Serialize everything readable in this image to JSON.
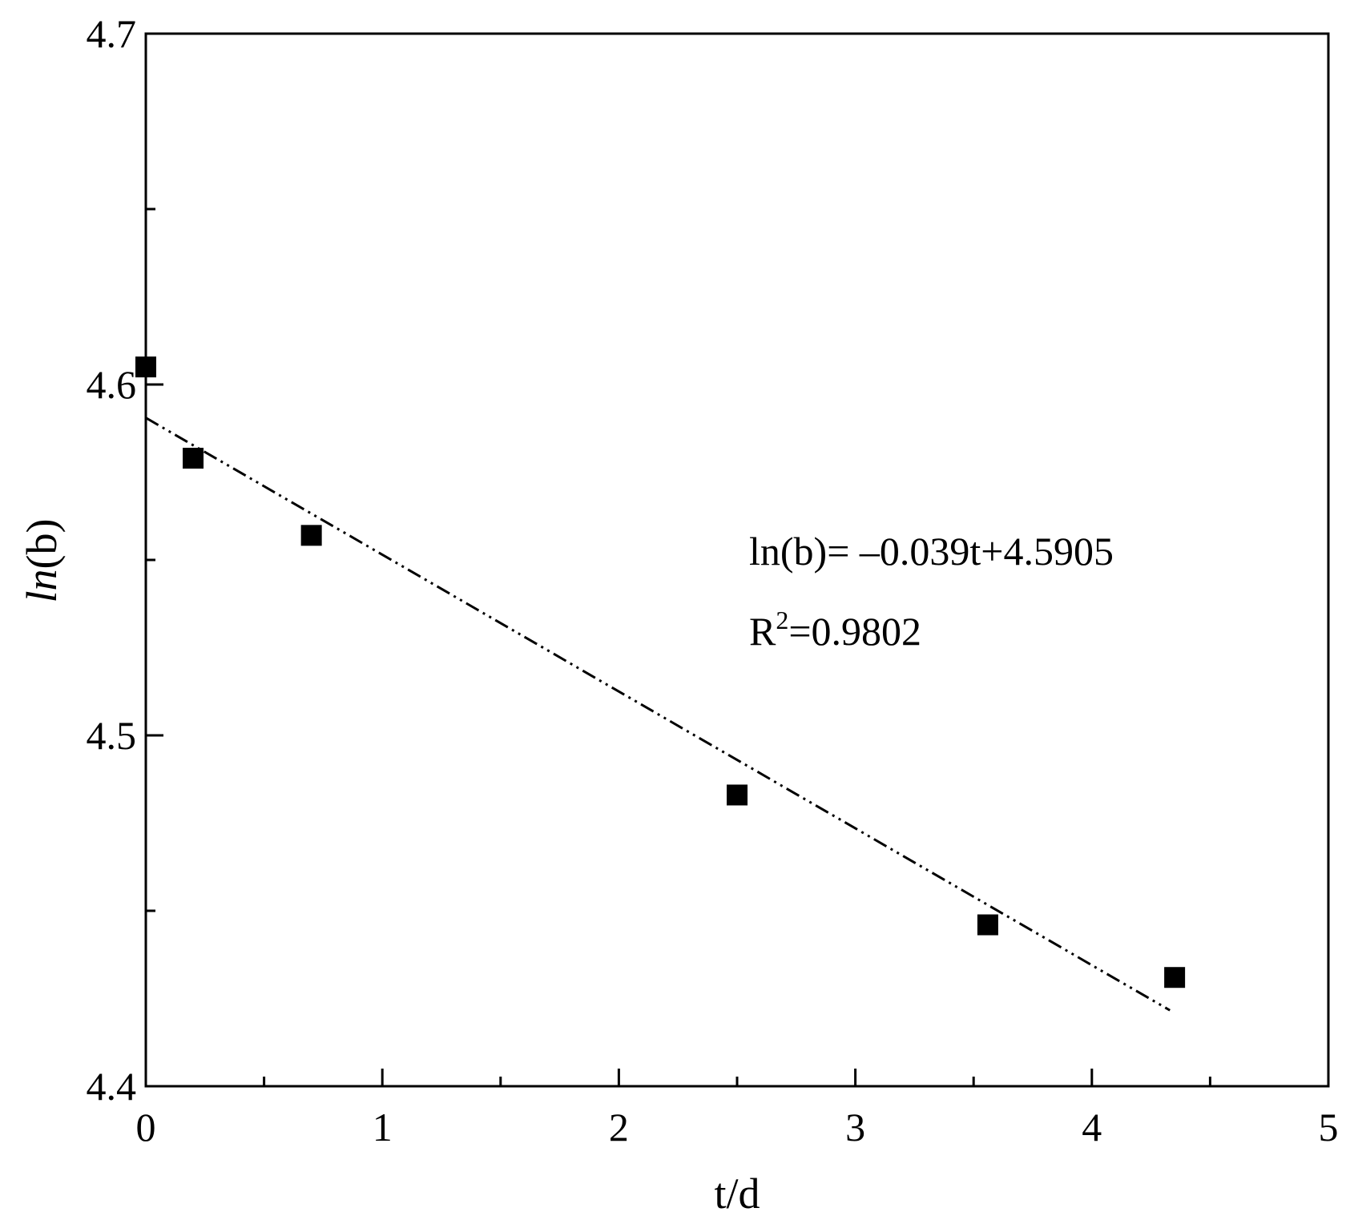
{
  "chart_data": {
    "type": "scatter",
    "title": "",
    "xlabel": "t/d",
    "ylabel": {
      "italic": "ln",
      "rest": "(b)"
    },
    "xlim": [
      0,
      5
    ],
    "ylim": [
      4.4,
      4.7
    ],
    "xticks": [
      0,
      1,
      2,
      3,
      4,
      5
    ],
    "xtick_labels": [
      "0",
      "1",
      "2",
      "3",
      "4",
      "5"
    ],
    "yticks": [
      4.4,
      4.5,
      4.6,
      4.7
    ],
    "ytick_labels": [
      "4.4",
      "4.5",
      "4.6",
      "4.7"
    ],
    "x_minor_step": 0.5,
    "y_minor_step": 0.05,
    "grid": false,
    "series": [
      {
        "marker": "square",
        "color": "#000000",
        "x": [
          0.0,
          0.2,
          0.7,
          2.5,
          3.56,
          4.35
        ],
        "y": [
          4.605,
          4.579,
          4.557,
          4.483,
          4.446,
          4.431
        ]
      }
    ],
    "fit_line": {
      "style": "dash-dot",
      "slope": -0.039,
      "intercept": 4.5905,
      "x_range": [
        0,
        4.33
      ]
    },
    "annotation": {
      "equation": "ln(b)= –0.039t+4.5905",
      "r2_prefix": "R",
      "r2_sup": "2",
      "r2_value": "=0.9802"
    }
  }
}
